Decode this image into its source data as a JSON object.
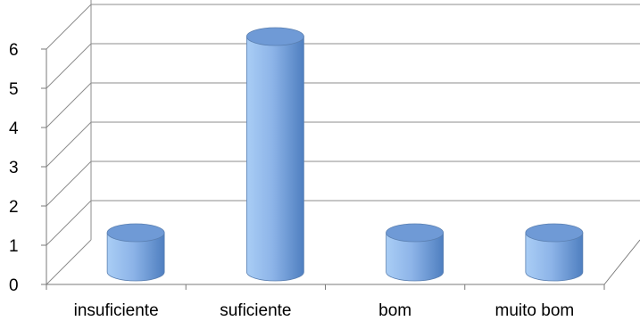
{
  "chart_data": {
    "type": "bar",
    "style": "3d-cylinder",
    "categories": [
      "insuficiente",
      "suficiente",
      "bom",
      "muito bom"
    ],
    "values": [
      1,
      6,
      1,
      1
    ],
    "ylim": [
      0,
      6
    ],
    "yticks": [
      "0",
      "1",
      "2",
      "3",
      "4",
      "5",
      "6"
    ],
    "grid": true,
    "legend": "none",
    "colors": {
      "bar_light": "#a9cdf5",
      "bar_mid": "#8db4e8",
      "bar_dark": "#4f7fc0",
      "bar_top": "#6f9ad6",
      "bar_outline": "#5a7fb0",
      "grid": "#8c8c8c",
      "axis": "#7a7a7a"
    }
  }
}
